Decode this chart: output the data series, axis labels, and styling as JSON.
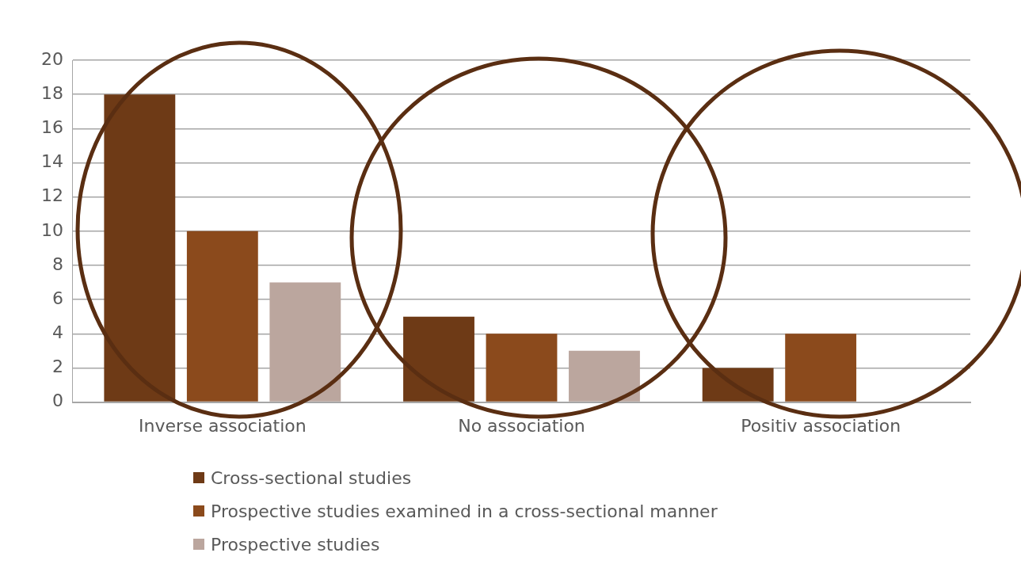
{
  "chart_data": {
    "type": "bar",
    "categories": [
      "Inverse association",
      "No association",
      "Positiv association"
    ],
    "series": [
      {
        "name": "Cross-sectional studies",
        "color": "#6e3a16",
        "values": [
          18,
          5,
          2
        ]
      },
      {
        "name": "Prospective studies examined in a cross-sectional manner",
        "color": "#8b4a1c",
        "values": [
          10,
          4,
          4
        ]
      },
      {
        "name": "Prospective studies",
        "color": "#bba69e",
        "values": [
          7,
          3,
          null
        ]
      }
    ],
    "ylim": [
      0,
      20
    ],
    "yticks": [
      0,
      2,
      4,
      6,
      8,
      10,
      12,
      14,
      16,
      18,
      20
    ],
    "grid": "y",
    "legend": "bottom"
  }
}
